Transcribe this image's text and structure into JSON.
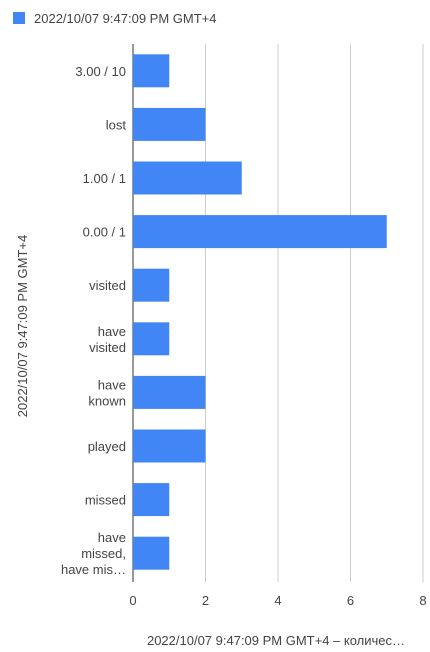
{
  "chart_data": {
    "type": "bar",
    "orientation": "horizontal",
    "legend": {
      "position": "top",
      "entries": [
        "2022/10/07 9:47:09 PM GMT+4"
      ]
    },
    "ylabel": "2022/10/07 9:47:09 PM GMT+4",
    "xlabel": "2022/10/07 9:47:09 PM GMT+4 – количес…",
    "categories": [
      [
        "3.00 / 10"
      ],
      [
        "lost"
      ],
      [
        "1.00 / 1"
      ],
      [
        "0.00 / 1"
      ],
      [
        "visited"
      ],
      [
        "have",
        "visited"
      ],
      [
        "have",
        "known"
      ],
      [
        "played"
      ],
      [
        "missed"
      ],
      [
        "have",
        "missed,",
        "have mis…"
      ]
    ],
    "series": [
      {
        "name": "2022/10/07 9:47:09 PM GMT+4",
        "color": "#4285f4",
        "values": [
          1,
          2,
          3,
          7,
          1,
          1,
          2,
          2,
          1,
          1
        ]
      }
    ],
    "xlim": [
      0,
      8
    ],
    "xticks": [
      "0",
      "2",
      "4",
      "6",
      "8"
    ],
    "grid": true
  }
}
